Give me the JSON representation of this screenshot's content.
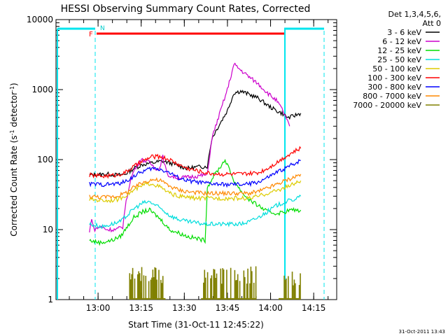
{
  "chart_data": {
    "type": "line",
    "title": "HESSI Observing Summary Count Rates, Corrected",
    "xlabel": "Start Time (31-Oct-11 12:45:22)",
    "ylabel_main": "Corrected Count Rate (s",
    "ylabel_sup1": "-1",
    "ylabel_mid": " detector",
    "ylabel_sup2": "-1",
    "ylabel_end": ")",
    "y_log": true,
    "ylim": [
      1,
      10000
    ],
    "xlim": [
      "12:45:22",
      "14:23:00"
    ],
    "x_ticks": [
      "13:00",
      "13:15",
      "13:30",
      "13:45",
      "14:00",
      "14:15"
    ],
    "y_ticks": [
      "1",
      "10",
      "100",
      "1000",
      "10000"
    ],
    "legend_header": [
      "Det 1,3,4,5,6,",
      "Att 0"
    ],
    "legend_placement": "right",
    "flag_labels": {
      "F": "F",
      "N": "N"
    },
    "timestamp": "31-Oct-2011 13:43",
    "series": [
      {
        "name": "3 - 6 keV",
        "color": "#000000",
        "points": [
          [
            0,
            60
          ],
          [
            8,
            62
          ],
          [
            13,
            60
          ],
          [
            16,
            62
          ],
          [
            20,
            75
          ],
          [
            24,
            85
          ],
          [
            30,
            92
          ],
          [
            33,
            95
          ],
          [
            37,
            88
          ],
          [
            41,
            80
          ],
          [
            44,
            75
          ],
          [
            48,
            78
          ],
          [
            52,
            80
          ],
          [
            53,
            80
          ],
          [
            55,
            200
          ],
          [
            58,
            300
          ],
          [
            62,
            500
          ],
          [
            65,
            900
          ],
          [
            68,
            950
          ],
          [
            72,
            850
          ],
          [
            76,
            750
          ],
          [
            80,
            600
          ],
          [
            84,
            500
          ],
          [
            87,
            450
          ],
          [
            89,
            400
          ],
          [
            90,
            400
          ],
          [
            95,
            460
          ]
        ]
      },
      {
        "name": "6 - 12 keV",
        "color": "#cc00cc",
        "points": [
          [
            0,
            9
          ],
          [
            1,
            15
          ],
          [
            2,
            10
          ],
          [
            5,
            11
          ],
          [
            8,
            10
          ],
          [
            12,
            10
          ],
          [
            15,
            11
          ],
          [
            16,
            20
          ],
          [
            18,
            45
          ],
          [
            20,
            70
          ],
          [
            23,
            100
          ],
          [
            26,
            95
          ],
          [
            28,
            85
          ],
          [
            31,
            70
          ],
          [
            33,
            110
          ],
          [
            35,
            60
          ],
          [
            37,
            58
          ],
          [
            40,
            55
          ],
          [
            44,
            56
          ],
          [
            48,
            58
          ],
          [
            52,
            60
          ],
          [
            53,
            60
          ],
          [
            55,
            200
          ],
          [
            58,
            400
          ],
          [
            62,
            1000
          ],
          [
            65,
            2300
          ],
          [
            68,
            1900
          ],
          [
            72,
            1500
          ],
          [
            76,
            1200
          ],
          [
            80,
            900
          ],
          [
            84,
            700
          ],
          [
            87,
            500
          ],
          [
            89,
            350
          ],
          [
            90,
            300
          ]
        ]
      },
      {
        "name": "12 - 25 keV",
        "color": "#00dd00",
        "points": [
          [
            0,
            7
          ],
          [
            5,
            6.5
          ],
          [
            10,
            7
          ],
          [
            14,
            8
          ],
          [
            17,
            11
          ],
          [
            20,
            15
          ],
          [
            24,
            18
          ],
          [
            27,
            19
          ],
          [
            30,
            16
          ],
          [
            33,
            13
          ],
          [
            36,
            10
          ],
          [
            40,
            9
          ],
          [
            44,
            8
          ],
          [
            48,
            7.5
          ],
          [
            52,
            7
          ],
          [
            53,
            40
          ],
          [
            56,
            60
          ],
          [
            59,
            80
          ],
          [
            61,
            100
          ],
          [
            63,
            70
          ],
          [
            65,
            50
          ],
          [
            67,
            40
          ],
          [
            70,
            30
          ],
          [
            73,
            25
          ],
          [
            76,
            22
          ],
          [
            80,
            18
          ],
          [
            84,
            17
          ],
          [
            88,
            18
          ],
          [
            90,
            19
          ],
          [
            95,
            19
          ]
        ]
      },
      {
        "name": "25 - 50 keV",
        "color": "#00dddd",
        "points": [
          [
            0,
            12
          ],
          [
            6,
            11
          ],
          [
            10,
            12
          ],
          [
            14,
            13
          ],
          [
            17,
            16
          ],
          [
            20,
            20
          ],
          [
            24,
            24
          ],
          [
            27,
            25
          ],
          [
            30,
            22
          ],
          [
            33,
            19
          ],
          [
            36,
            16
          ],
          [
            40,
            14
          ],
          [
            44,
            13
          ],
          [
            48,
            12.5
          ],
          [
            52,
            12
          ],
          [
            56,
            12
          ],
          [
            60,
            12
          ],
          [
            64,
            12
          ],
          [
            68,
            12
          ],
          [
            72,
            13
          ],
          [
            76,
            15
          ],
          [
            80,
            18
          ],
          [
            84,
            22
          ],
          [
            88,
            25
          ],
          [
            92,
            27
          ],
          [
            95,
            30
          ]
        ]
      },
      {
        "name": "50 - 100 keV",
        "color": "#ddcc00",
        "points": [
          [
            0,
            27
          ],
          [
            8,
            26
          ],
          [
            13,
            27
          ],
          [
            17,
            32
          ],
          [
            21,
            38
          ],
          [
            25,
            44
          ],
          [
            28,
            46
          ],
          [
            32,
            40
          ],
          [
            36,
            33
          ],
          [
            40,
            30
          ],
          [
            44,
            29
          ],
          [
            48,
            28
          ],
          [
            52,
            28
          ],
          [
            56,
            28
          ],
          [
            60,
            28
          ],
          [
            64,
            28
          ],
          [
            68,
            28
          ],
          [
            72,
            28
          ],
          [
            76,
            30
          ],
          [
            80,
            33
          ],
          [
            84,
            36
          ],
          [
            88,
            40
          ],
          [
            92,
            45
          ],
          [
            95,
            50
          ]
        ]
      },
      {
        "name": "100 - 300 keV",
        "color": "#ff0000",
        "points": [
          [
            0,
            60
          ],
          [
            6,
            58
          ],
          [
            12,
            60
          ],
          [
            16,
            65
          ],
          [
            20,
            80
          ],
          [
            24,
            95
          ],
          [
            28,
            110
          ],
          [
            32,
            110
          ],
          [
            36,
            100
          ],
          [
            40,
            85
          ],
          [
            44,
            75
          ],
          [
            48,
            70
          ],
          [
            52,
            65
          ],
          [
            56,
            63
          ],
          [
            60,
            62
          ],
          [
            64,
            62
          ],
          [
            68,
            62
          ],
          [
            72,
            63
          ],
          [
            76,
            65
          ],
          [
            80,
            75
          ],
          [
            84,
            90
          ],
          [
            88,
            110
          ],
          [
            92,
            130
          ],
          [
            95,
            145
          ]
        ]
      },
      {
        "name": "300 - 800 keV",
        "color": "#0000ff",
        "points": [
          [
            0,
            45
          ],
          [
            6,
            44
          ],
          [
            12,
            45
          ],
          [
            16,
            48
          ],
          [
            20,
            58
          ],
          [
            24,
            68
          ],
          [
            28,
            75
          ],
          [
            32,
            73
          ],
          [
            36,
            65
          ],
          [
            40,
            55
          ],
          [
            44,
            50
          ],
          [
            48,
            48
          ],
          [
            52,
            46
          ],
          [
            56,
            45
          ],
          [
            60,
            44
          ],
          [
            64,
            44
          ],
          [
            68,
            44
          ],
          [
            72,
            45
          ],
          [
            76,
            48
          ],
          [
            80,
            55
          ],
          [
            84,
            65
          ],
          [
            88,
            75
          ],
          [
            92,
            88
          ],
          [
            95,
            98
          ]
        ]
      },
      {
        "name": "800 - 7000 keV",
        "color": "#ff8800",
        "points": [
          [
            0,
            30
          ],
          [
            6,
            29
          ],
          [
            12,
            30
          ],
          [
            16,
            33
          ],
          [
            20,
            40
          ],
          [
            24,
            47
          ],
          [
            28,
            52
          ],
          [
            32,
            50
          ],
          [
            36,
            42
          ],
          [
            40,
            37
          ],
          [
            44,
            35
          ],
          [
            48,
            34
          ],
          [
            52,
            33
          ],
          [
            56,
            33
          ],
          [
            60,
            33
          ],
          [
            64,
            33
          ],
          [
            68,
            33
          ],
          [
            72,
            33
          ],
          [
            76,
            35
          ],
          [
            80,
            39
          ],
          [
            84,
            44
          ],
          [
            88,
            50
          ],
          [
            92,
            56
          ],
          [
            95,
            62
          ]
        ]
      },
      {
        "name": "7000 - 20000 keV",
        "color": "#808000",
        "points": []
      }
    ]
  }
}
